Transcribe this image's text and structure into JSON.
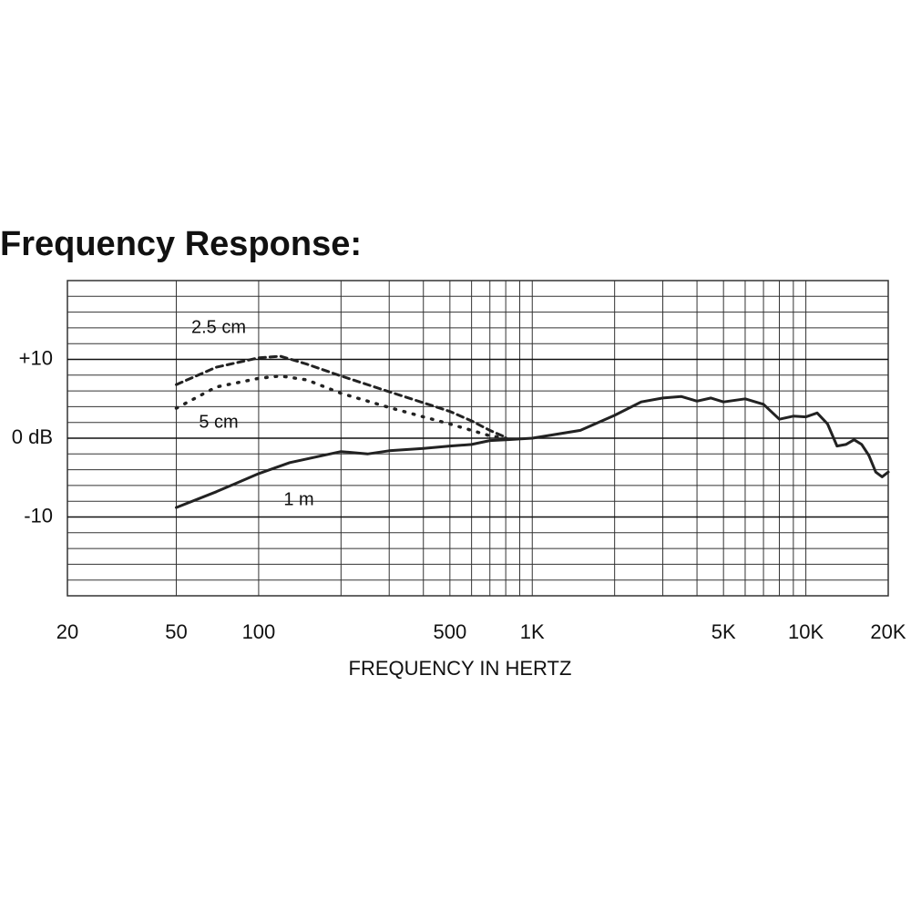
{
  "chart_data": {
    "type": "line",
    "title": "Frequency Response:",
    "x_label": "FREQUENCY IN HERTZ",
    "xscale": "log",
    "xlim": [
      20,
      20000
    ],
    "ylim": [
      -20,
      20
    ],
    "xticks": [
      20,
      50,
      100,
      500,
      {
        "value": 1000,
        "label": "1K"
      },
      {
        "value": 5000,
        "label": "5K"
      },
      {
        "value": 10000,
        "label": "10K"
      },
      {
        "value": 20000,
        "label": "20K"
      }
    ],
    "yticks": [
      {
        "value": 10,
        "label": "+10"
      },
      {
        "value": 0,
        "label": "0 dB"
      },
      {
        "value": -10,
        "label": "-10"
      }
    ],
    "xgrid": [
      20,
      50,
      100,
      200,
      300,
      400,
      500,
      600,
      700,
      800,
      900,
      1000,
      2000,
      3000,
      4000,
      5000,
      6000,
      7000,
      8000,
      9000,
      10000,
      20000
    ],
    "ygrid": [
      -20,
      -18,
      -16,
      -14,
      -12,
      -10,
      -8,
      -6,
      -4,
      -2,
      0,
      2,
      4,
      6,
      8,
      10,
      12,
      14,
      16,
      18,
      20
    ],
    "grid": true,
    "series": [
      {
        "name": "1 m",
        "color": "#222222",
        "style": "solid",
        "x": [
          50,
          70,
          100,
          130,
          200,
          250,
          300,
          400,
          500,
          600,
          700,
          800,
          1000,
          1500,
          2000,
          2500,
          3000,
          3500,
          4000,
          4500,
          5000,
          6000,
          7000,
          8000,
          9000,
          10000,
          11000,
          12000,
          13000,
          14000,
          15000,
          16000,
          17000,
          18000,
          19000,
          20000
        ],
        "values": [
          -8.8,
          -6.8,
          -4.5,
          -3.1,
          -1.7,
          -2.0,
          -1.6,
          -1.3,
          -1.0,
          -0.8,
          -0.3,
          -0.2,
          0,
          1.0,
          2.9,
          4.6,
          5.1,
          5.3,
          4.7,
          5.1,
          4.6,
          5.0,
          4.3,
          2.4,
          2.8,
          2.7,
          3.2,
          1.8,
          -1.0,
          -0.8,
          -0.2,
          -0.8,
          -2.2,
          -4.3,
          -4.9,
          -4.3
        ]
      },
      {
        "name": "2.5 cm",
        "color": "#222222",
        "style": "dashed",
        "x": [
          50,
          70,
          100,
          120,
          150,
          200,
          300,
          400,
          500,
          600,
          700,
          800
        ],
        "values": [
          6.8,
          9.0,
          10.2,
          10.4,
          9.4,
          7.9,
          5.9,
          4.5,
          3.4,
          2.2,
          1.0,
          0.1
        ]
      },
      {
        "name": "5 cm",
        "color": "#222222",
        "style": "dotted",
        "x": [
          50,
          70,
          100,
          120,
          150,
          200,
          300,
          400,
          500,
          600,
          700,
          800
        ],
        "values": [
          3.8,
          6.5,
          7.6,
          7.9,
          7.4,
          5.7,
          3.9,
          2.7,
          1.8,
          1.0,
          0.3,
          0
        ]
      }
    ]
  }
}
